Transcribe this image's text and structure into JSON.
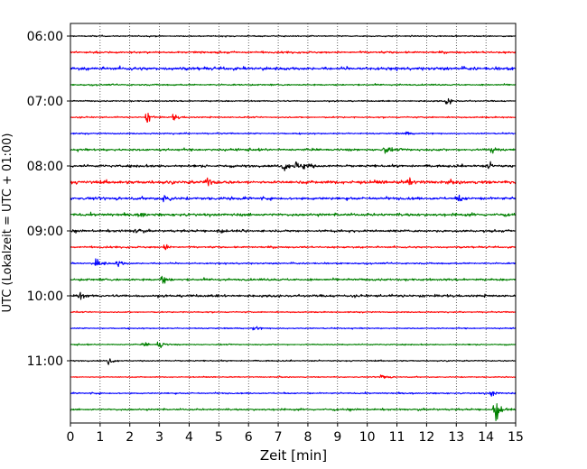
{
  "chart_data": {
    "type": "line",
    "title": "",
    "xlabel": "Zeit  [min]",
    "ylabel": "UTC (Lokalzeit = UTC + 01:00)",
    "xlim": [
      0,
      15
    ],
    "x_ticks": [
      "0",
      "1",
      "2",
      "3",
      "4",
      "5",
      "6",
      "7",
      "8",
      "9",
      "10",
      "11",
      "12",
      "13",
      "14",
      "15"
    ],
    "y_tick_labels": [
      "06:00",
      "07:00",
      "08:00",
      "09:00",
      "10:00",
      "11:00"
    ],
    "y_tick_rows": [
      0,
      4,
      8,
      12,
      16,
      20
    ],
    "grid": "vertical dotted",
    "row_interval_min": 15,
    "series": [
      {
        "start": "06:00",
        "color": "#000000",
        "amp": 0.06,
        "events": []
      },
      {
        "start": "06:15",
        "color": "#ff0000",
        "amp": 0.1,
        "events": []
      },
      {
        "start": "06:30",
        "color": "#0000ff",
        "amp": 0.16,
        "events": []
      },
      {
        "start": "06:45",
        "color": "#008000",
        "amp": 0.08,
        "events": []
      },
      {
        "start": "07:00",
        "color": "#000000",
        "amp": 0.07,
        "events": [
          [
            12.7,
            0.4
          ]
        ]
      },
      {
        "start": "07:15",
        "color": "#ff0000",
        "amp": 0.07,
        "events": [
          [
            2.6,
            0.55
          ],
          [
            3.5,
            0.35
          ]
        ]
      },
      {
        "start": "07:30",
        "color": "#0000ff",
        "amp": 0.07,
        "events": [
          [
            11.3,
            0.2
          ]
        ]
      },
      {
        "start": "07:45",
        "color": "#008000",
        "amp": 0.12,
        "events": [
          [
            10.6,
            0.35
          ],
          [
            14.2,
            0.3
          ]
        ]
      },
      {
        "start": "08:00",
        "color": "#000000",
        "amp": 0.12,
        "events": [
          [
            7.2,
            0.55
          ],
          [
            7.6,
            0.45
          ],
          [
            7.9,
            0.5
          ],
          [
            14.1,
            0.35
          ]
        ]
      },
      {
        "start": "08:15",
        "color": "#ff0000",
        "amp": 0.16,
        "events": [
          [
            4.6,
            0.45
          ],
          [
            11.4,
            0.4
          ]
        ]
      },
      {
        "start": "08:30",
        "color": "#0000ff",
        "amp": 0.14,
        "events": [
          [
            3.2,
            0.5
          ],
          [
            13.1,
            0.25
          ]
        ]
      },
      {
        "start": "08:45",
        "color": "#008000",
        "amp": 0.14,
        "events": [
          [
            2.4,
            0.2
          ]
        ]
      },
      {
        "start": "09:00",
        "color": "#000000",
        "amp": 0.11,
        "events": [
          [
            2.2,
            0.3
          ],
          [
            5.0,
            0.25
          ]
        ]
      },
      {
        "start": "09:15",
        "color": "#ff0000",
        "amp": 0.09,
        "events": [
          [
            3.2,
            0.25
          ]
        ]
      },
      {
        "start": "09:30",
        "color": "#0000ff",
        "amp": 0.08,
        "events": [
          [
            0.9,
            0.55
          ],
          [
            1.6,
            0.4
          ]
        ]
      },
      {
        "start": "09:45",
        "color": "#008000",
        "amp": 0.12,
        "events": [
          [
            3.1,
            0.5
          ]
        ]
      },
      {
        "start": "10:00",
        "color": "#000000",
        "amp": 0.13,
        "events": [
          [
            0.3,
            0.35
          ]
        ]
      },
      {
        "start": "10:15",
        "color": "#ff0000",
        "amp": 0.06,
        "events": []
      },
      {
        "start": "10:30",
        "color": "#0000ff",
        "amp": 0.06,
        "events": [
          [
            6.2,
            0.3
          ]
        ]
      },
      {
        "start": "10:45",
        "color": "#008000",
        "amp": 0.06,
        "events": [
          [
            3.0,
            0.45
          ],
          [
            2.5,
            0.2
          ]
        ]
      },
      {
        "start": "11:00",
        "color": "#000000",
        "amp": 0.06,
        "events": [
          [
            1.3,
            0.4
          ]
        ]
      },
      {
        "start": "11:15",
        "color": "#ff0000",
        "amp": 0.05,
        "events": [
          [
            10.5,
            0.35
          ]
        ]
      },
      {
        "start": "11:30",
        "color": "#0000ff",
        "amp": 0.07,
        "events": [
          [
            14.2,
            0.3
          ]
        ]
      },
      {
        "start": "11:45",
        "color": "#008000",
        "amp": 0.09,
        "events": [
          [
            14.3,
            1.6
          ]
        ]
      }
    ]
  }
}
